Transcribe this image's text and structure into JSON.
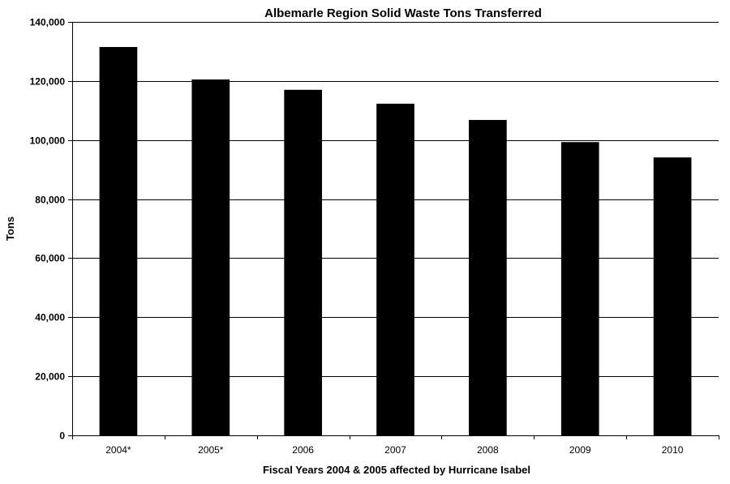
{
  "chart_data": {
    "type": "bar",
    "title": "Albemarle Region Solid Waste Tons Transferred",
    "xlabel": "Fiscal Years 2004 & 2005 affected by Hurricane Isabel",
    "ylabel": "Tons",
    "categories": [
      "2004*",
      "2005*",
      "2006",
      "2007",
      "2008",
      "2009",
      "2010"
    ],
    "values": [
      131500,
      120500,
      117000,
      112300,
      106800,
      99300,
      94100
    ],
    "ylim": [
      0,
      140000
    ],
    "yticks": [
      0,
      20000,
      40000,
      60000,
      80000,
      100000,
      120000,
      140000
    ],
    "ytick_labels": [
      "0",
      "20,000",
      "40,000",
      "60,000",
      "80,000",
      "100,000",
      "120,000",
      "140,000"
    ],
    "grid": true,
    "bar_color": "#000000",
    "grid_color": "#000000"
  }
}
